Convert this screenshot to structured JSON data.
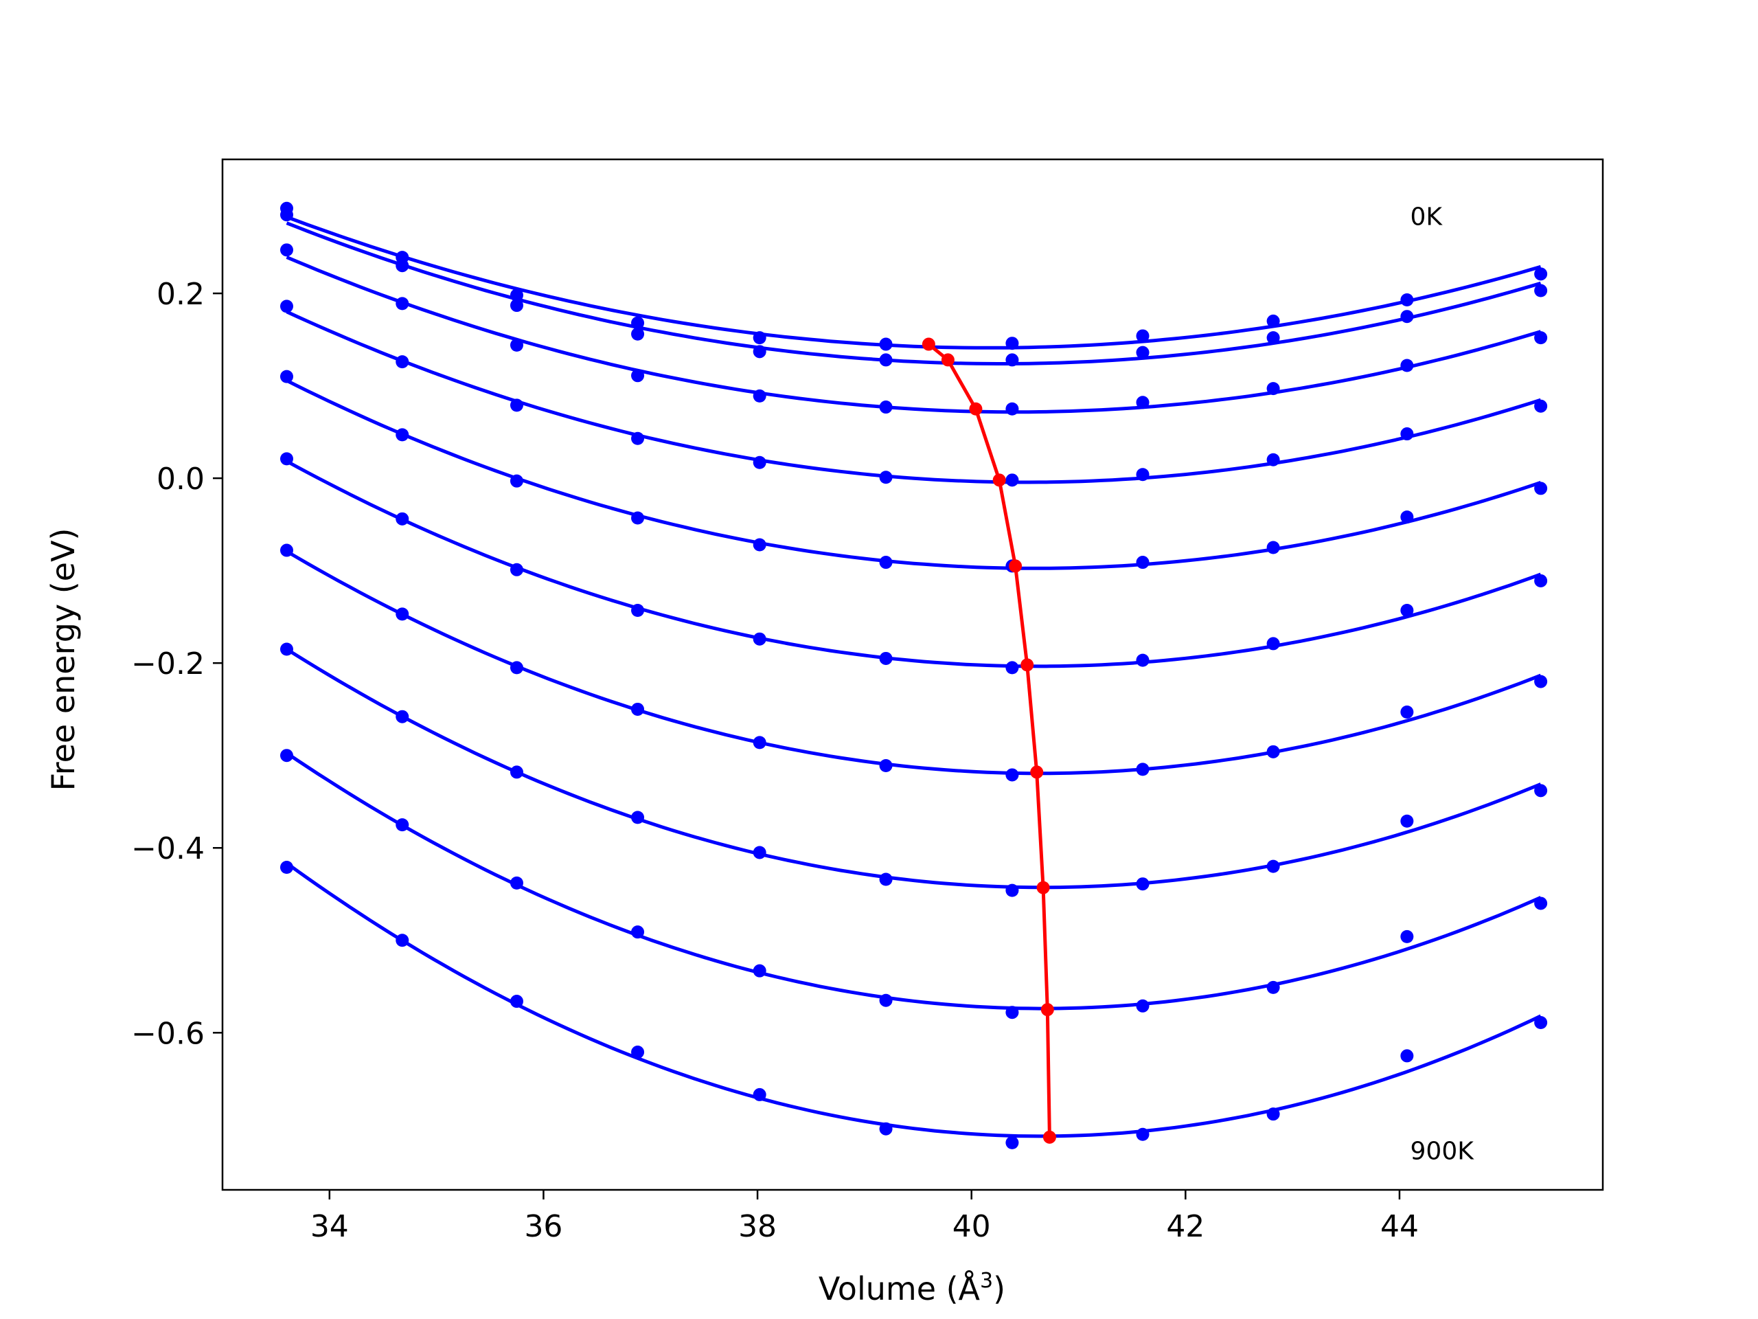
{
  "chart_data": {
    "type": "line",
    "title": "",
    "xlabel": "Volume (Å",
    "xlabel_sup": "3",
    "xlabel_close": ")",
    "ylabel": "Free energy (eV)",
    "xlim": [
      33.0,
      45.9
    ],
    "ylim": [
      -0.77,
      0.345
    ],
    "xticks": [
      34,
      36,
      38,
      40,
      42,
      44
    ],
    "xtick_labels": [
      "34",
      "36",
      "38",
      "40",
      "42",
      "44"
    ],
    "yticks": [
      -0.6,
      -0.4,
      -0.2,
      0.0,
      0.2
    ],
    "ytick_labels": [
      "−0.6",
      "−0.4",
      "−0.2",
      "0.0",
      "0.2"
    ],
    "grid": false,
    "annotations": [
      {
        "text": "0K",
        "x": 44.1,
        "y": 0.283
      },
      {
        "text": "900K",
        "x": 44.1,
        "y": -0.728
      }
    ],
    "colors": {
      "curves": "#0000ff",
      "minima": "#ff0000"
    },
    "x": [
      33.6,
      34.68,
      35.75,
      36.88,
      38.02,
      39.2,
      40.38,
      41.6,
      42.82,
      44.07,
      45.32
    ],
    "series": [
      {
        "values": [
          0.292,
          0.239,
          0.198,
          0.168,
          0.152,
          0.145,
          0.146,
          0.154,
          0.17,
          0.193,
          0.221
        ]
      },
      {
        "values": [
          0.285,
          0.23,
          0.187,
          0.156,
          0.137,
          0.128,
          0.128,
          0.136,
          0.152,
          0.175,
          0.203
        ]
      },
      {
        "values": [
          0.247,
          0.189,
          0.144,
          0.111,
          0.089,
          0.077,
          0.075,
          0.082,
          0.097,
          0.122,
          0.152
        ]
      },
      {
        "values": [
          0.186,
          0.126,
          0.079,
          0.043,
          0.017,
          0.001,
          -0.002,
          0.004,
          0.02,
          0.048,
          0.078
        ]
      },
      {
        "values": [
          0.11,
          0.047,
          -0.003,
          -0.043,
          -0.072,
          -0.091,
          -0.095,
          -0.091,
          -0.075,
          -0.042,
          -0.011
        ]
      },
      {
        "values": [
          0.021,
          -0.044,
          -0.099,
          -0.143,
          -0.174,
          -0.195,
          -0.205,
          -0.197,
          -0.179,
          -0.143,
          -0.111
        ]
      },
      {
        "values": [
          -0.078,
          -0.147,
          -0.205,
          -0.25,
          -0.286,
          -0.311,
          -0.321,
          -0.315,
          -0.296,
          -0.253,
          -0.22
        ]
      },
      {
        "values": [
          -0.185,
          -0.258,
          -0.318,
          -0.367,
          -0.405,
          -0.434,
          -0.446,
          -0.439,
          -0.42,
          -0.371,
          -0.338
        ]
      },
      {
        "values": [
          -0.3,
          -0.375,
          -0.438,
          -0.491,
          -0.533,
          -0.565,
          -0.578,
          -0.571,
          -0.551,
          -0.496,
          -0.46
        ]
      },
      {
        "values": [
          -0.421,
          -0.5,
          -0.566,
          -0.621,
          -0.667,
          -0.704,
          -0.719,
          -0.71,
          -0.688,
          -0.625,
          -0.589
        ]
      }
    ],
    "minima": {
      "x": [
        39.6,
        39.78,
        40.04,
        40.26,
        40.41,
        40.52,
        40.61,
        40.67,
        40.71,
        40.73
      ],
      "y": [
        0.145,
        0.128,
        0.075,
        -0.002,
        -0.095,
        -0.202,
        -0.318,
        -0.443,
        -0.575,
        -0.713
      ]
    }
  }
}
